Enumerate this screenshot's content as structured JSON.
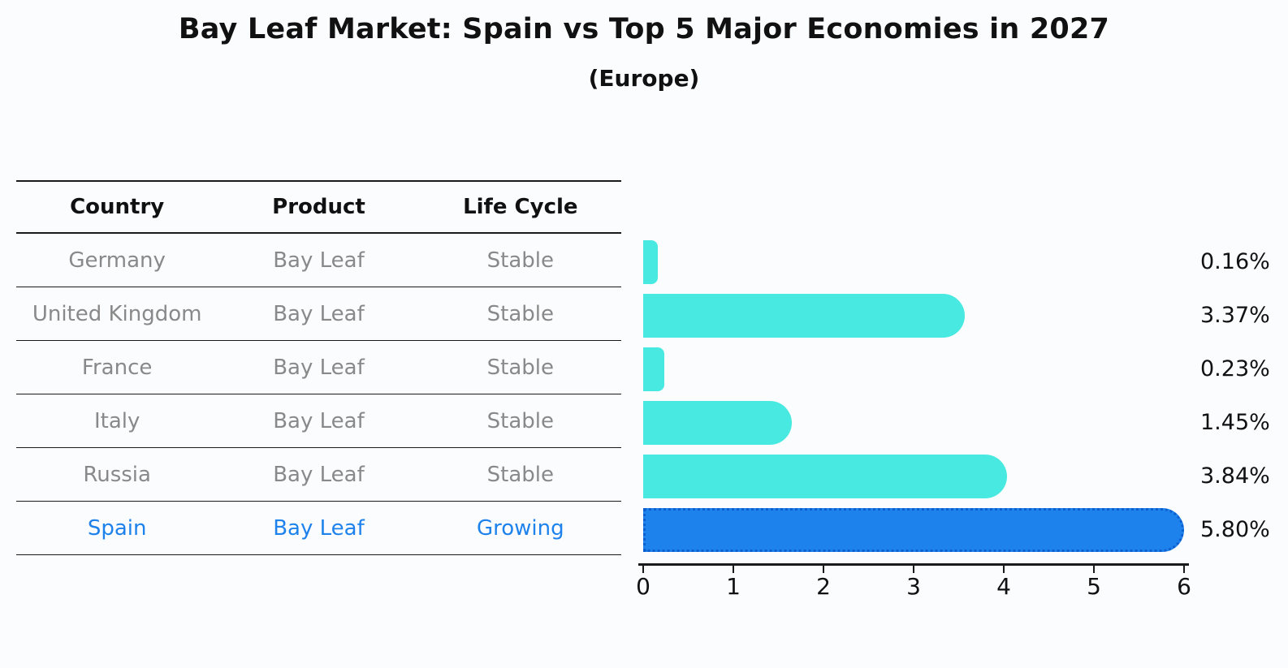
{
  "title": "Bay Leaf Market: Spain vs Top 5 Major Economies in 2027",
  "subtitle": "(Europe)",
  "table": {
    "headers": [
      "Country",
      "Product",
      "Life Cycle"
    ],
    "rows": [
      {
        "country": "Germany",
        "product": "Bay Leaf",
        "life_cycle": "Stable",
        "highlight": false
      },
      {
        "country": "United Kingdom",
        "product": "Bay Leaf",
        "life_cycle": "Stable",
        "highlight": false
      },
      {
        "country": "France",
        "product": "Bay Leaf",
        "life_cycle": "Stable",
        "highlight": false
      },
      {
        "country": "Italy",
        "product": "Bay Leaf",
        "life_cycle": "Stable",
        "highlight": false
      },
      {
        "country": "Russia",
        "product": "Bay Leaf",
        "life_cycle": "Stable",
        "highlight": false
      },
      {
        "country": "Spain",
        "product": "Bay Leaf",
        "life_cycle": "Growing",
        "highlight": true
      }
    ]
  },
  "chart_data": {
    "type": "bar",
    "orientation": "horizontal",
    "title": "Bay Leaf Market: Spain vs Top 5 Major Economies in 2027",
    "subtitle": "(Europe)",
    "categories": [
      "Germany",
      "United Kingdom",
      "France",
      "Italy",
      "Russia",
      "Spain"
    ],
    "values": [
      0.16,
      3.37,
      0.23,
      1.45,
      3.84,
      5.8
    ],
    "value_labels": [
      "0.16%",
      "3.37%",
      "0.23%",
      "1.45%",
      "3.84%",
      "5.80%"
    ],
    "xlim": [
      0,
      6
    ],
    "xtick_labels": [
      "0",
      "1",
      "2",
      "3",
      "4",
      "5",
      "6"
    ],
    "grid": false,
    "legend": "none",
    "highlight_category": "Spain",
    "highlight_edge_style": "dotted",
    "value_label_position": "right-outside"
  },
  "colors": {
    "bar_default": "#48E9E1",
    "bar_highlight": "#1E82EC",
    "highlight_edge": "#0D5FD0",
    "row_text": "#898989",
    "highlight_text": "#1E82EC",
    "header_text": "#111111",
    "line": "#1a1a1a",
    "background": "#fbfcfd"
  }
}
